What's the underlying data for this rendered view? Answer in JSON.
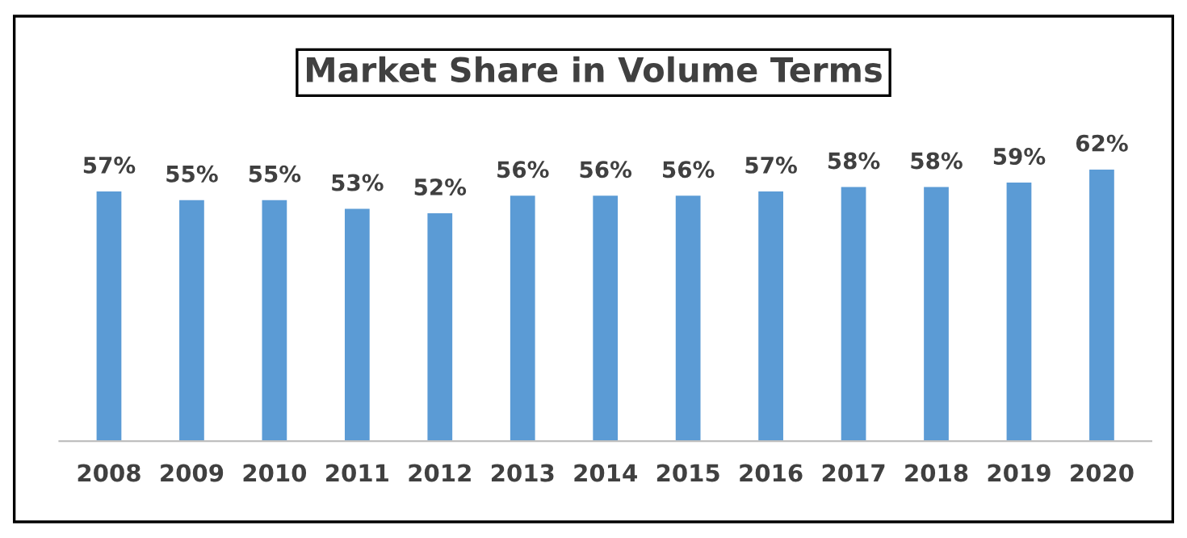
{
  "chart_data": {
    "type": "bar",
    "title": "Market Share in Volume Terms",
    "categories": [
      "2008",
      "2009",
      "2010",
      "2011",
      "2012",
      "2013",
      "2014",
      "2015",
      "2016",
      "2017",
      "2018",
      "2019",
      "2020"
    ],
    "values": [
      57,
      55,
      55,
      53,
      52,
      56,
      56,
      56,
      57,
      58,
      58,
      59,
      62
    ],
    "value_labels": [
      "57%",
      "55%",
      "55%",
      "53%",
      "52%",
      "56%",
      "56%",
      "56%",
      "57%",
      "58%",
      "58%",
      "59%",
      "62%"
    ],
    "color": "#5b9bd5",
    "tick_labels": "x",
    "grid": false,
    "legend": false
  }
}
